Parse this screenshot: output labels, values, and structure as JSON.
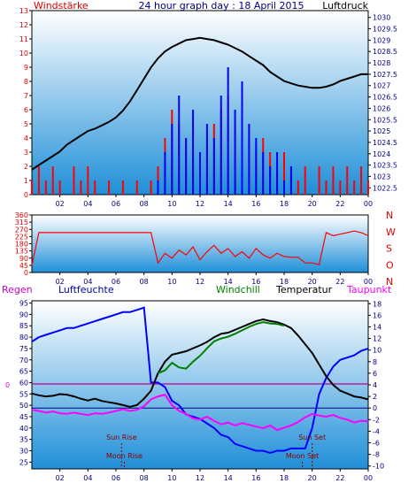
{
  "page": {
    "title": "24 hour graph day : 18 April 2015"
  },
  "colors": {
    "plot_bg_top": "#ffffff",
    "plot_bg_bottom": "#1f8fd8",
    "axis_red": "#dd0000",
    "axis_navy": "#000080",
    "wind": "#ff0000",
    "gust": "#0000ff",
    "pressure": "#000000",
    "humidity": "#0000ff",
    "windchill": "#008000",
    "temperature": "#000000",
    "dewpoint": "#ff00ff",
    "rain_line": "#c00090",
    "zero_line": "#000080"
  },
  "chart_data": [
    {
      "type": "line",
      "title": "24 hour graph day : 18 April 2015",
      "left_label": "Windstärke",
      "right_label": "Luftdruck",
      "x_ticks": [
        "02",
        "04",
        "06",
        "08",
        "10",
        "12",
        "14",
        "16",
        "18",
        "20",
        "22",
        "00"
      ],
      "y_left_ticks": [
        "0",
        "1",
        "2",
        "3",
        "4",
        "5",
        "6",
        "7",
        "8",
        "9",
        "10",
        "11",
        "12",
        "13"
      ],
      "y_right_ticks": [
        "1022.5",
        "1023",
        "1023.5",
        "1024",
        "1024.5",
        "1025",
        "1025.5",
        "1026",
        "1026.5",
        "1027",
        "1027.5",
        "1028",
        "1028.5",
        "1029",
        "1029.5",
        "1030"
      ],
      "xlim": [
        0,
        24
      ],
      "ylim_left": [
        0,
        13
      ],
      "ylim_right": [
        1022.2,
        1030.3
      ],
      "series": [
        {
          "name": "Luftdruck",
          "axis": "right",
          "x": [
            0,
            0.5,
            1,
            1.5,
            2,
            2.5,
            3,
            3.5,
            4,
            4.5,
            5,
            5.5,
            6,
            6.5,
            7,
            7.5,
            8,
            8.5,
            9,
            9.5,
            10,
            10.5,
            11,
            11.5,
            12,
            12.5,
            13,
            13.5,
            14,
            14.5,
            15,
            15.5,
            16,
            16.5,
            17,
            17.5,
            18,
            18.5,
            19,
            19.5,
            20,
            20.5,
            21,
            21.5,
            22,
            22.5,
            23,
            23.5,
            24
          ],
          "y": [
            1023.3,
            1023.5,
            1023.7,
            1023.9,
            1024.1,
            1024.4,
            1024.6,
            1024.8,
            1025.0,
            1025.1,
            1025.25,
            1025.4,
            1025.6,
            1025.9,
            1026.3,
            1026.8,
            1027.3,
            1027.8,
            1028.2,
            1028.5,
            1028.7,
            1028.85,
            1029.0,
            1029.05,
            1029.1,
            1029.05,
            1029.0,
            1028.9,
            1028.8,
            1028.65,
            1028.5,
            1028.3,
            1028.1,
            1027.9,
            1027.6,
            1027.4,
            1027.2,
            1027.1,
            1027.0,
            1026.95,
            1026.9,
            1026.9,
            1026.95,
            1027.05,
            1027.2,
            1027.3,
            1027.4,
            1027.5,
            1027.5
          ]
        },
        {
          "name": "Wind",
          "axis": "left",
          "x": [
            0,
            0.5,
            1,
            1.5,
            2,
            2.5,
            3,
            3.5,
            4,
            4.5,
            5,
            5.5,
            6,
            6.5,
            7,
            7.5,
            8,
            8.5,
            9,
            9.5,
            10,
            10.5,
            11,
            11.5,
            12,
            12.5,
            13,
            13.5,
            14,
            14.5,
            15,
            15.5,
            16,
            16.5,
            17,
            17.5,
            18,
            18.5,
            19,
            19.5,
            20,
            20.5,
            21,
            21.5,
            22,
            22.5,
            23,
            23.5,
            24
          ],
          "y": [
            1,
            2,
            1,
            2,
            1,
            0,
            2,
            1,
            2,
            1,
            0,
            1,
            0,
            1,
            0,
            1,
            0,
            1,
            2,
            4,
            6,
            5,
            4,
            5,
            3,
            4,
            5,
            6,
            7,
            5,
            6,
            5,
            3,
            4,
            3,
            2,
            3,
            2,
            1,
            2,
            0,
            2,
            1,
            2,
            1,
            2,
            1,
            2,
            1
          ]
        },
        {
          "name": "Gust",
          "axis": "left",
          "x": [
            0,
            0.5,
            1,
            1.5,
            2,
            2.5,
            3,
            3.5,
            4,
            4.5,
            5,
            5.5,
            6,
            6.5,
            7,
            7.5,
            8,
            8.5,
            9,
            9.5,
            10,
            10.5,
            11,
            11.5,
            12,
            12.5,
            13,
            13.5,
            14,
            14.5,
            15,
            15.5,
            16,
            16.5,
            17,
            17.5,
            18,
            18.5,
            19,
            19.5,
            20,
            20.5,
            21,
            21.5,
            22,
            22.5,
            23,
            23.5,
            24
          ],
          "y": [
            0,
            0,
            0,
            0,
            0,
            0,
            0,
            0,
            0,
            0,
            0,
            0,
            0,
            0,
            0,
            0,
            0,
            0,
            1,
            3,
            5,
            7,
            4,
            6,
            3,
            5,
            4,
            7,
            9,
            6,
            8,
            5,
            4,
            3,
            2,
            3,
            1,
            2,
            0,
            0,
            0,
            0,
            0,
            0,
            0,
            0,
            0,
            0,
            0
          ]
        }
      ]
    },
    {
      "type": "line",
      "title": "",
      "x_ticks": [
        "02",
        "04",
        "06",
        "08",
        "10",
        "12",
        "14",
        "16",
        "18",
        "20",
        "22",
        "00"
      ],
      "y_left_ticks": [
        "0",
        "45",
        "90",
        "135",
        "180",
        "225",
        "270",
        "315",
        "360"
      ],
      "y_right_ticks": [
        "N",
        "W",
        "S",
        "O",
        "N"
      ],
      "xlim": [
        0,
        24
      ],
      "ylim": [
        0,
        360
      ],
      "series": [
        {
          "name": "Windrichtung",
          "x": [
            0,
            0.5,
            1,
            1.5,
            2,
            2.5,
            3,
            3.5,
            4,
            4.5,
            5,
            5.5,
            6,
            6.5,
            7,
            7.5,
            8,
            8.5,
            9,
            9.5,
            10,
            10.5,
            11,
            11.5,
            12,
            12.5,
            13,
            13.5,
            14,
            14.5,
            15,
            15.5,
            16,
            16.5,
            17,
            17.5,
            18,
            18.5,
            19,
            19.5,
            20,
            20.5,
            21,
            21.5,
            22,
            22.5,
            23,
            23.5,
            24
          ],
          "y": [
            45,
            250,
            250,
            250,
            250,
            250,
            250,
            250,
            250,
            250,
            250,
            250,
            250,
            250,
            250,
            250,
            250,
            250,
            60,
            120,
            90,
            140,
            110,
            160,
            80,
            130,
            170,
            120,
            150,
            100,
            130,
            90,
            150,
            110,
            90,
            120,
            100,
            95,
            95,
            60,
            60,
            50,
            250,
            230,
            240,
            250,
            260,
            250,
            230
          ]
        }
      ]
    },
    {
      "type": "line",
      "title": "",
      "labels": {
        "rain": "Regen",
        "humidity": "Luftfeuchte",
        "windchill": "Windchill",
        "temperature": "Temperatur",
        "dewpoint": "Taupunkt",
        "rain_value": "0"
      },
      "x_ticks": [
        "02",
        "04",
        "06",
        "08",
        "10",
        "12",
        "14",
        "16",
        "18",
        "20",
        "22",
        "00"
      ],
      "y_left_ticks": [
        "25",
        "30",
        "35",
        "40",
        "45",
        "50",
        "55",
        "60",
        "65",
        "70",
        "75",
        "80",
        "85",
        "90",
        "95"
      ],
      "y_right_ticks": [
        "-10",
        "-8",
        "-6",
        "-4",
        "-2",
        "0",
        "2",
        "4",
        "6",
        "8",
        "10",
        "12",
        "14",
        "16",
        "18"
      ],
      "xlim": [
        0,
        24
      ],
      "ylim_left": [
        22,
        96
      ],
      "ylim_right": [
        -10.5,
        18.5
      ],
      "annotations": [
        {
          "label": "Sun Rise",
          "x": 6.4
        },
        {
          "label": "Moon Rise",
          "x": 6.6
        },
        {
          "label": "Sun Set",
          "x": 20.0
        },
        {
          "label": "Moon Set",
          "x": 19.3
        }
      ],
      "series": [
        {
          "name": "Luftfeuchte",
          "axis": "left",
          "x": [
            0,
            0.5,
            1,
            1.5,
            2,
            2.5,
            3,
            3.5,
            4,
            4.5,
            5,
            5.5,
            6,
            6.5,
            7,
            7.5,
            8,
            8.5,
            9,
            9.5,
            10,
            10.5,
            11,
            11.5,
            12,
            12.5,
            13,
            13.5,
            14,
            14.5,
            15,
            15.5,
            16,
            16.5,
            17,
            17.5,
            18,
            18.5,
            19,
            19.5,
            20,
            20.5,
            21,
            21.5,
            22,
            22.5,
            23,
            23.5,
            24
          ],
          "y": [
            78,
            80,
            81,
            82,
            83,
            84,
            84,
            85,
            86,
            87,
            88,
            89,
            90,
            91,
            91,
            92,
            93,
            60,
            60,
            58,
            52,
            50,
            46,
            45,
            44,
            42,
            40,
            37,
            36,
            33,
            32,
            31,
            30,
            30,
            29,
            30,
            30,
            31,
            31,
            31,
            40,
            55,
            62,
            67,
            70,
            71,
            72,
            74,
            75
          ]
        },
        {
          "name": "Temperatur",
          "axis": "right",
          "x": [
            0,
            0.5,
            1,
            1.5,
            2,
            2.5,
            3,
            3.5,
            4,
            4.5,
            5,
            5.5,
            6,
            6.5,
            7,
            7.5,
            8,
            8.5,
            9,
            9.5,
            10,
            10.5,
            11,
            11.5,
            12,
            12.5,
            13,
            13.5,
            14,
            14.5,
            15,
            15.5,
            16,
            16.5,
            17,
            17.5,
            18,
            18.5,
            19,
            19.5,
            20,
            20.5,
            21,
            21.5,
            22,
            22.5,
            23,
            23.5,
            24
          ],
          "y": [
            2.5,
            2.2,
            2.0,
            2.1,
            2.4,
            2.3,
            2.0,
            1.6,
            1.3,
            1.6,
            1.2,
            1.0,
            0.8,
            0.5,
            0.2,
            0.5,
            1.6,
            3.0,
            6.0,
            8.0,
            9.2,
            9.5,
            9.8,
            10.3,
            10.8,
            11.4,
            12.2,
            12.8,
            13.0,
            13.5,
            14.0,
            14.5,
            15.0,
            15.3,
            15.0,
            14.8,
            14.4,
            13.8,
            12.5,
            11.0,
            9.5,
            7.5,
            5.5,
            4.0,
            3.0,
            2.5,
            2.0,
            1.8,
            1.5
          ]
        },
        {
          "name": "Windchill",
          "axis": "right",
          "x": [
            9,
            9.5,
            10,
            10.5,
            11,
            11.5,
            12,
            12.5,
            13,
            13.5,
            14,
            14.5,
            15,
            15.5,
            16,
            16.5,
            17,
            17.5,
            18
          ],
          "y": [
            6.0,
            6.5,
            7.8,
            7.0,
            6.8,
            8.0,
            9.0,
            10.3,
            11.5,
            12.0,
            12.3,
            12.8,
            13.4,
            14.0,
            14.5,
            14.8,
            14.6,
            14.5,
            14.2
          ]
        },
        {
          "name": "Taupunkt",
          "axis": "right",
          "x": [
            0,
            0.5,
            1,
            1.5,
            2,
            2.5,
            3,
            3.5,
            4,
            4.5,
            5,
            5.5,
            6,
            6.5,
            7,
            7.5,
            8,
            8.5,
            9,
            9.5,
            10,
            10.5,
            11,
            11.5,
            12,
            12.5,
            13,
            13.5,
            14,
            14.5,
            15,
            15.5,
            16,
            16.5,
            17,
            17.5,
            18,
            18.5,
            19,
            19.5,
            20,
            20.5,
            21,
            21.5,
            22,
            22.5,
            23,
            23.5,
            24
          ],
          "y": [
            -0.3,
            -0.5,
            -0.8,
            -0.6,
            -0.9,
            -1.0,
            -0.8,
            -1.0,
            -1.2,
            -0.9,
            -1.0,
            -0.8,
            -0.5,
            -0.2,
            -0.5,
            -0.3,
            0.3,
            1.5,
            2.0,
            2.3,
            0.5,
            -0.5,
            -1.0,
            -1.8,
            -2.0,
            -1.5,
            -2.2,
            -2.8,
            -2.5,
            -3.0,
            -2.6,
            -2.9,
            -3.2,
            -3.5,
            -3.0,
            -3.8,
            -3.4,
            -3.0,
            -2.4,
            -1.6,
            -1.0,
            -1.3,
            -1.5,
            -1.2,
            -1.7,
            -2.0,
            -2.5,
            -2.2,
            -2.3
          ]
        }
      ]
    }
  ]
}
